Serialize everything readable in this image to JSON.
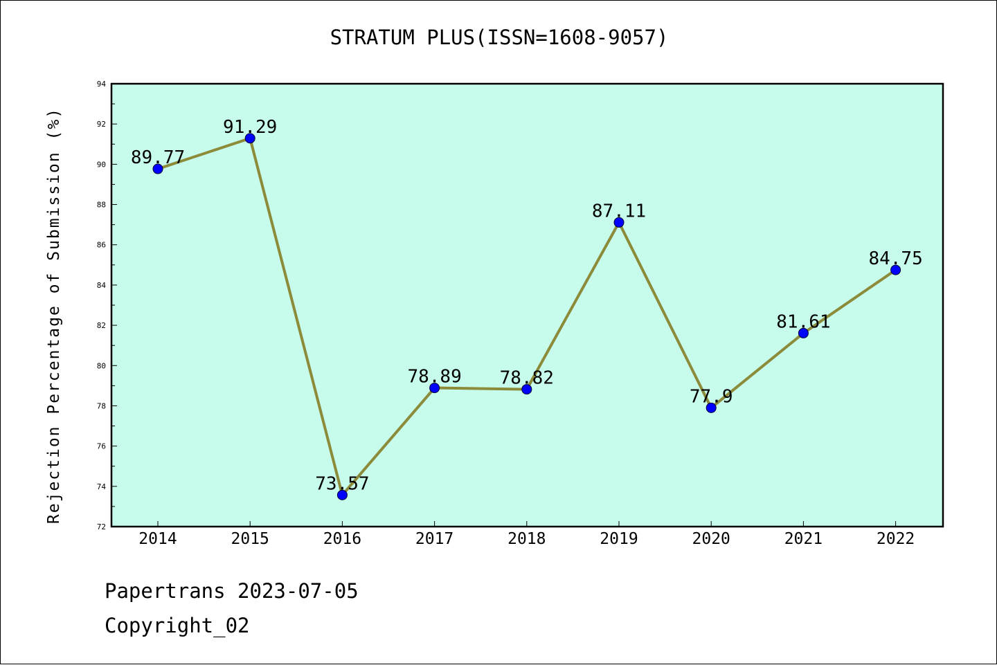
{
  "chart_data": {
    "type": "line",
    "title": "STRATUM PLUS(ISSN=1608-9057)",
    "ylabel": "Rejection Percentage of Submission (%)",
    "xlabel": "",
    "categories": [
      "2014",
      "2015",
      "2016",
      "2017",
      "2018",
      "2019",
      "2020",
      "2021",
      "2022"
    ],
    "series": [
      {
        "values": [
          89.77,
          91.29,
          73.57,
          78.89,
          78.82,
          87.11,
          77.9,
          81.61,
          84.75
        ],
        "labels": [
          "89.77",
          "91.29",
          "73.57",
          "78.89",
          "78.82",
          "87.11",
          "77.9",
          "81.61",
          "84.75"
        ]
      }
    ],
    "ylim": [
      72,
      94
    ],
    "yticks": [
      72,
      74,
      76,
      78,
      80,
      82,
      84,
      86,
      88,
      90,
      92,
      94
    ],
    "grid": false,
    "colors": {
      "plot_background": "#c7fcec",
      "line": "#8b8b3a",
      "marker": "#0000ff"
    }
  },
  "footer": {
    "line1": "Papertrans 2023-07-05",
    "line2": "Copyright_02"
  }
}
